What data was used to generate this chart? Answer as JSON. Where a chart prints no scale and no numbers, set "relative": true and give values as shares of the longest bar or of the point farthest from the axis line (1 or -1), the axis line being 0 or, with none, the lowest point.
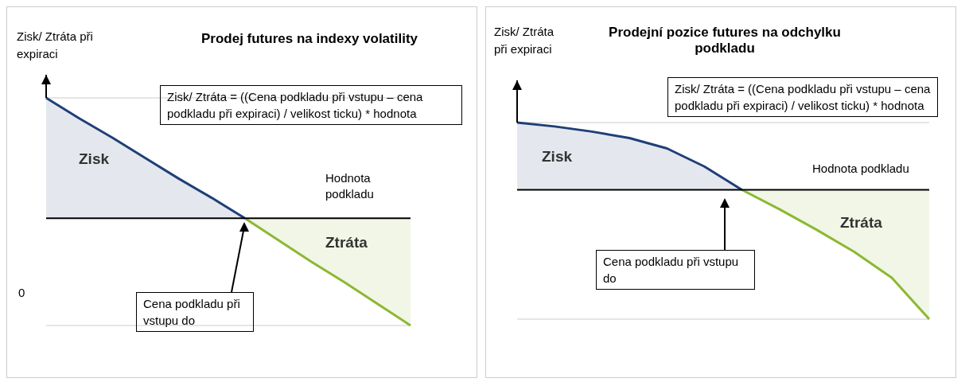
{
  "chart_data": [
    {
      "type": "area",
      "title": "Prodej futures na indexy volatility",
      "xlabel": "Hodnota podkladu",
      "ylabel": "Zisk/ Ztráta při expiraci",
      "relative": true,
      "grid": "y",
      "legend": false,
      "categories": [
        null,
        null,
        null,
        null,
        null,
        null,
        null,
        null,
        null,
        null,
        null,
        null
      ],
      "series": [
        {
          "name": "Zisk",
          "color": "#1f3f77",
          "values": [
            1,
            0.83,
            0.67,
            0.5,
            0.33,
            0.17,
            0,
            null,
            null,
            null,
            null,
            null
          ]
        },
        {
          "name": "Ztráta",
          "color": "#8cb832",
          "values": [
            null,
            null,
            null,
            null,
            null,
            null,
            0,
            -0.18,
            -0.36,
            -0.53,
            -0.71,
            -0.89
          ]
        }
      ],
      "annotations": [
        "Zisk/ Ztráta = ((Cena podkladu při vstupu – cena podkladu při expiraci) / velikost ticku) * hodnota",
        "Cena podkladu při vstupu do",
        "0"
      ]
    },
    {
      "type": "area",
      "title": "Prodejní pozice futures na odchylku podkladu",
      "xlabel": "Hodnota podkladu",
      "ylabel": "Zisk/ Ztráta při expiraci",
      "relative": true,
      "grid": "y",
      "legend": false,
      "categories": [
        null,
        null,
        null,
        null,
        null,
        null,
        null,
        null,
        null,
        null,
        null,
        null
      ],
      "series": [
        {
          "name": "Zisk",
          "color": "#1f3f77",
          "values": [
            0.52,
            0.49,
            0.45,
            0.4,
            0.32,
            0.18,
            0,
            null,
            null,
            null,
            null,
            null
          ]
        },
        {
          "name": "Ztráta",
          "color": "#8cb832",
          "values": [
            null,
            null,
            null,
            null,
            null,
            null,
            0,
            -0.15,
            -0.31,
            -0.48,
            -0.68,
            -1
          ]
        }
      ],
      "annotations": [
        "Zisk/ Ztráta = ((Cena podkladu při vstupu – cena podkladu při expiraci) / velikost ticku) * hodnota",
        "Cena podkladu při vstupu do"
      ]
    }
  ]
}
